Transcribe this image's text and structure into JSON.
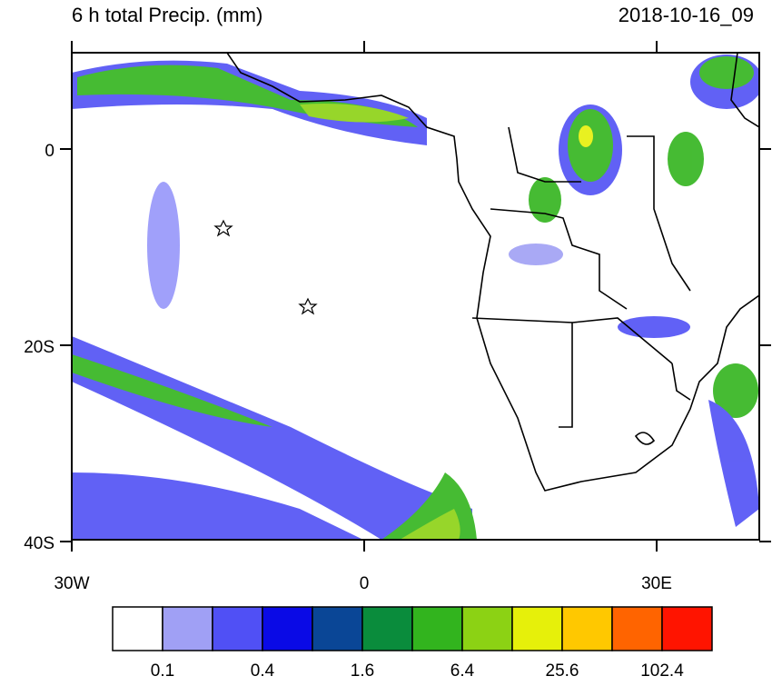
{
  "map": {
    "title": "6 h total Precip. (mm)",
    "valid_time": "2018-10-16_09",
    "lat_ticks": [
      {
        "value": 0,
        "label": "0"
      },
      {
        "value": -20,
        "label": "20S"
      },
      {
        "value": -40,
        "label": "40S"
      }
    ],
    "lon_ticks": [
      {
        "value": -30,
        "label": "30W"
      },
      {
        "value": 0,
        "label": "0"
      },
      {
        "value": 30,
        "label": "30E"
      }
    ]
  },
  "colorbar": {
    "colors": [
      "#ffffff",
      "#a0a0f5",
      "#5050f5",
      "#0a0ae6",
      "#0a4696",
      "#0a8c3c",
      "#32b41e",
      "#8cd214",
      "#e6f00a",
      "#ffc800",
      "#ff6400",
      "#ff1400"
    ],
    "labels": [
      0.1,
      0.4,
      1.6,
      6.4,
      25.6,
      102.4
    ]
  }
}
